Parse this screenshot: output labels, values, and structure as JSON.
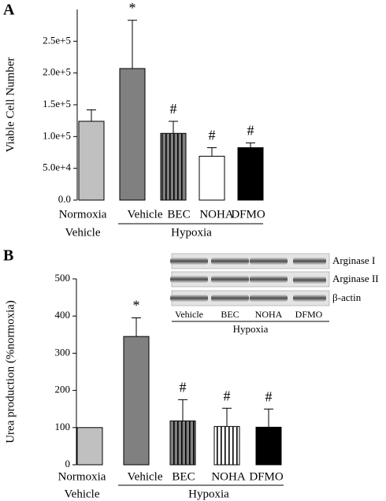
{
  "chart_data": [
    {
      "type": "bar",
      "panel_label": "A",
      "y_label": "Viable Cell Number",
      "categories": [
        "Normoxia",
        "Vehicle",
        "BEC",
        "NOHA",
        "DFMO"
      ],
      "group_labels": [
        "Vehicle",
        "Hypoxia"
      ],
      "values": [
        124000,
        207000,
        105000,
        69000,
        82500
      ],
      "errors": [
        18000,
        76000,
        19000,
        13500,
        7500
      ],
      "colors": [
        "#c0c0c0",
        "#808080",
        "#808080",
        "#ffffff",
        "#000000"
      ],
      "hatch": [
        null,
        null,
        "vertical",
        null,
        null
      ],
      "annotations": [
        null,
        "*",
        "#",
        "#",
        "#"
      ],
      "ylim": [
        0,
        300000
      ],
      "yticks": [
        {
          "value": 0,
          "label": "0.0"
        },
        {
          "value": 50000,
          "label": "5.0e+4"
        },
        {
          "value": 100000,
          "label": "1.0e+5"
        },
        {
          "value": 150000,
          "label": "1.5e+5"
        },
        {
          "value": 200000,
          "label": "2.0e+5"
        },
        {
          "value": 250000,
          "label": "2.5e+5"
        }
      ]
    },
    {
      "type": "bar",
      "panel_label": "B",
      "y_label": "Urea production (%normoxia)",
      "categories": [
        "Normoxia",
        "Vehicle",
        "BEC",
        "NOHA",
        "DFMO"
      ],
      "group_labels": [
        "Vehicle",
        "Hypoxia"
      ],
      "values": [
        100,
        345,
        118,
        103,
        101
      ],
      "errors": [
        0,
        50,
        57,
        49,
        49
      ],
      "colors": [
        "#c0c0c0",
        "#808080",
        "#808080",
        "#ffffff",
        "#000000"
      ],
      "hatch": [
        null,
        null,
        "vertical",
        "vertical",
        null
      ],
      "annotations": [
        null,
        "*",
        "#",
        "#",
        "#"
      ],
      "ylim": [
        0,
        500
      ],
      "yticks": [
        0,
        100,
        200,
        300,
        400,
        500
      ],
      "inset": {
        "rows": [
          "Arginase I",
          "Arginase II",
          "β-actin"
        ],
        "lanes": [
          "Vehicle",
          "BEC",
          "NOHA",
          "DFMO"
        ],
        "group": "Hypoxia"
      }
    }
  ]
}
